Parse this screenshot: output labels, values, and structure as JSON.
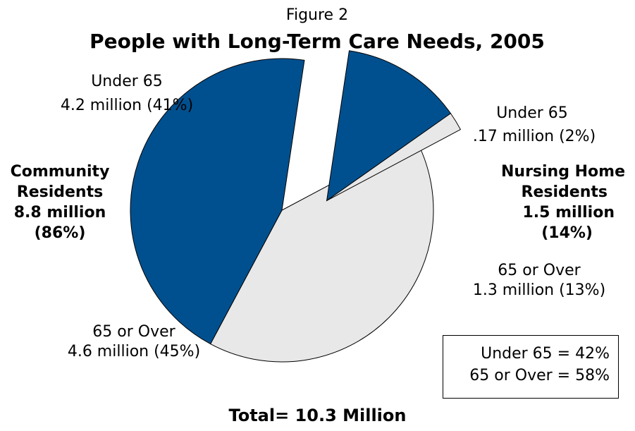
{
  "chart_data": {
    "type": "pie",
    "figure_label": "Figure 2",
    "title": "People with Long-Term Care Needs, 2005",
    "slices": [
      {
        "group": "Community Residents",
        "label": "Under 65",
        "value_text": "4.2 million (41%)",
        "value": 4.2,
        "percent": 41,
        "color": "#e8e8e8",
        "exploded": false
      },
      {
        "group": "Community Residents",
        "label": "65 or Over",
        "value_text": "4.6 million (45%)",
        "value": 4.6,
        "percent": 45,
        "color": "#00508f",
        "exploded": false
      },
      {
        "group": "Nursing Home Residents",
        "label": "Under 65",
        "value_text": ".17 million (2%)",
        "value": 0.17,
        "percent": 2,
        "color": "#e8e8e8",
        "exploded": true
      },
      {
        "group": "Nursing Home Residents",
        "label": "65 or Over",
        "value_text": "1.3 million (13%)",
        "value": 1.3,
        "percent": 13,
        "color": "#00508f",
        "exploded": true
      }
    ],
    "groups": [
      {
        "lines": [
          "Community",
          "Residents",
          "8.8 million",
          "(86%)"
        ],
        "value": 8.8,
        "percent": 86
      },
      {
        "lines": [
          "Nursing Home",
          "Residents",
          "1.5 million",
          "(14%)"
        ],
        "value": 1.5,
        "percent": 14
      }
    ],
    "summary": [
      "Under 65 = 42%",
      "65 or Over = 58%"
    ],
    "total": "Total= 10.3 Million"
  }
}
